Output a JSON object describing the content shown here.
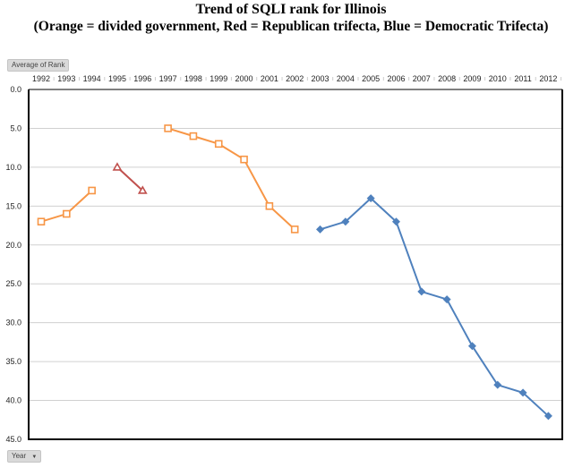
{
  "title_line1": "Trend of SQLI rank for Illinois",
  "title_line2": "(Orange = divided  government, Red = Republican  trifecta, Blue = Democratic Trifecta)",
  "value_field_button": "Average of Rank",
  "axis_field_button": "Year",
  "colors": {
    "divided": "#f79646",
    "republican": "#c0504d",
    "democratic": "#4f81bd"
  },
  "chart_data": {
    "type": "line",
    "title": "Trend of SQLI rank for Illinois",
    "xlabel": "Year",
    "ylabel": "Average of Rank",
    "categories": [
      "1992",
      "1993",
      "1994",
      "1995",
      "1996",
      "1997",
      "1998",
      "1999",
      "2000",
      "2001",
      "2002",
      "2003",
      "2004",
      "2005",
      "2006",
      "2007",
      "2008",
      "2009",
      "2010",
      "2011",
      "2012"
    ],
    "ylim": [
      0,
      45
    ],
    "y_reversed": true,
    "yticks": [
      "0.0",
      "5.0",
      "10.0",
      "15.0",
      "20.0",
      "25.0",
      "30.0",
      "35.0",
      "40.0",
      "45.0"
    ],
    "grid": true,
    "series": [
      {
        "name": "Divided government",
        "color": "#f79646",
        "marker": "square",
        "segments": [
          {
            "x": [
              "1992",
              "1993",
              "1994"
            ],
            "values": [
              17,
              16,
              13
            ]
          },
          {
            "x": [
              "1997",
              "1998",
              "1999",
              "2000",
              "2001",
              "2002"
            ],
            "values": [
              5,
              6,
              7,
              9,
              15,
              18
            ]
          }
        ]
      },
      {
        "name": "Republican trifecta",
        "color": "#c0504d",
        "marker": "triangle",
        "segments": [
          {
            "x": [
              "1995",
              "1996"
            ],
            "values": [
              10,
              13
            ]
          }
        ]
      },
      {
        "name": "Democratic trifecta",
        "color": "#4f81bd",
        "marker": "diamond",
        "segments": [
          {
            "x": [
              "2003",
              "2004",
              "2005",
              "2006",
              "2007",
              "2008",
              "2009",
              "2010",
              "2011",
              "2012"
            ],
            "values": [
              18,
              17,
              14,
              17,
              26,
              27,
              33,
              38,
              39,
              42
            ]
          }
        ]
      }
    ]
  }
}
